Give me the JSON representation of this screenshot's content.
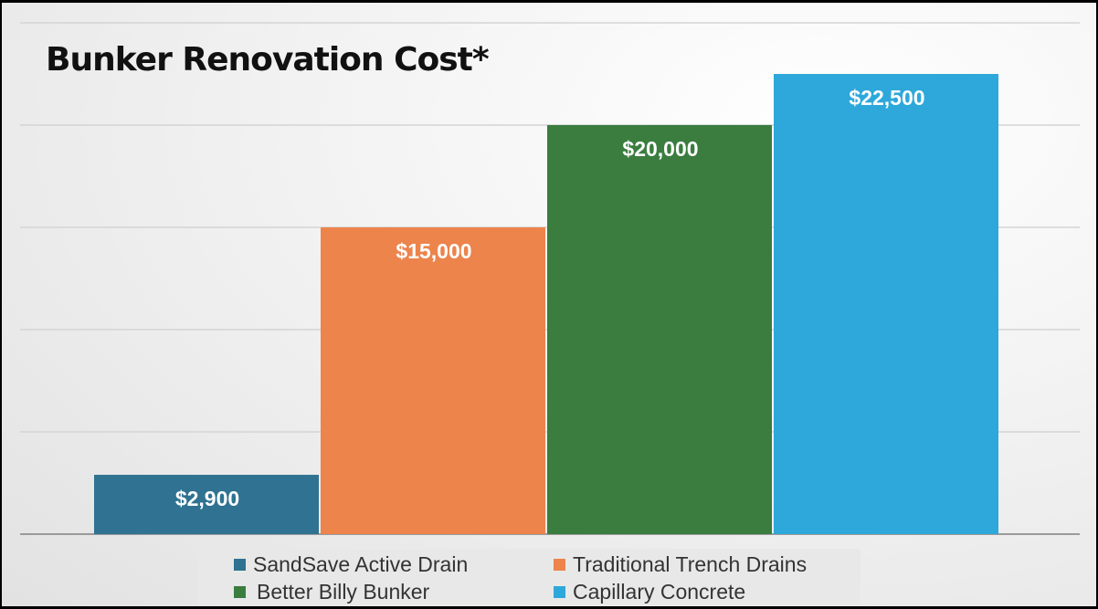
{
  "chart_data": {
    "type": "bar",
    "title": "Bunker Renovation Cost*",
    "categories": [
      "SandSave Active Drain",
      "Traditional Trench Drains",
      "Better Billy Bunker",
      "Capillary Concrete"
    ],
    "values": [
      2900,
      15000,
      20000,
      22500
    ],
    "data_labels": [
      "$2,900",
      "$15,000",
      "$20,000",
      "$22,500"
    ],
    "colors": [
      "#2f7291",
      "#ec844c",
      "#3a7d3f",
      "#2ea8da"
    ],
    "ylim": [
      0,
      25000
    ],
    "grid": true,
    "gridline_step": 5000,
    "legend_placement": "bottom",
    "xlabel": "",
    "ylabel": ""
  }
}
